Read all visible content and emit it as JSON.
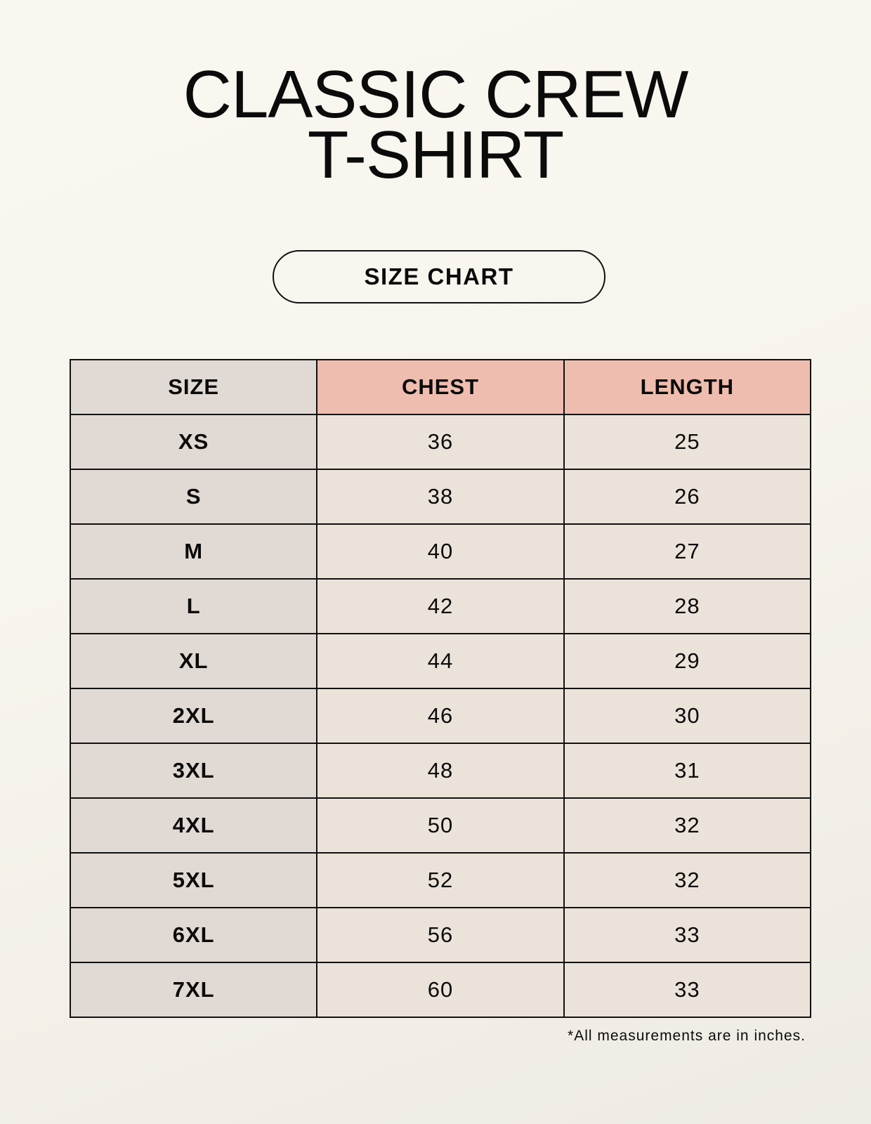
{
  "title": {
    "line1": "CLASSIC CREW",
    "line2": "T-SHIRT"
  },
  "badge": "SIZE CHART",
  "colors": {
    "size_column": "#e1d9d3",
    "header_accent": "#efbdaf",
    "value_cells": "#ebe3d9"
  },
  "table": {
    "headers": [
      "SIZE",
      "CHEST",
      "LENGTH"
    ],
    "rows": [
      [
        "XS",
        "36",
        "25"
      ],
      [
        "S",
        "38",
        "26"
      ],
      [
        "M",
        "40",
        "27"
      ],
      [
        "L",
        "42",
        "28"
      ],
      [
        "XL",
        "44",
        "29"
      ],
      [
        "2XL",
        "46",
        "30"
      ],
      [
        "3XL",
        "48",
        "31"
      ],
      [
        "4XL",
        "50",
        "32"
      ],
      [
        "5XL",
        "52",
        "32"
      ],
      [
        "6XL",
        "56",
        "33"
      ],
      [
        "7XL",
        "60",
        "33"
      ]
    ]
  },
  "footnote": "*All measurements are in inches."
}
